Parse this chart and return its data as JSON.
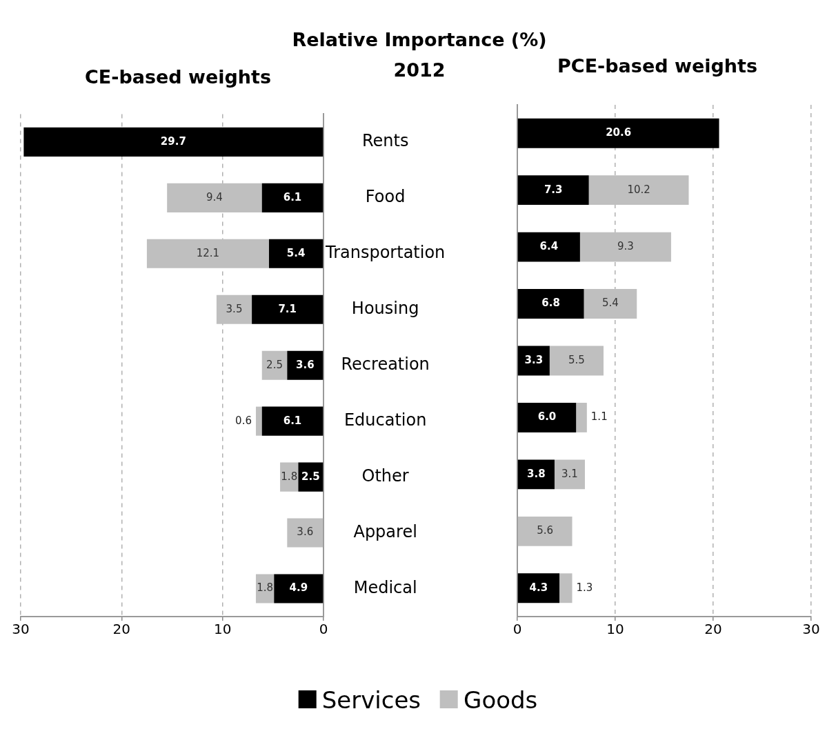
{
  "chart_data": [
    {
      "type": "bar",
      "orientation": "horizontal",
      "stacked": true,
      "title": "CE-based weights",
      "annotations": [
        "Relative Importance (%)",
        "2012"
      ],
      "categories": [
        "Rents",
        "Food",
        "Transportation",
        "Housing",
        "Recreation",
        "Education",
        "Other",
        "Apparel",
        "Medical"
      ],
      "series": [
        {
          "name": "Services",
          "color": "#000000",
          "values": [
            29.7,
            6.1,
            5.4,
            7.1,
            3.6,
            6.1,
            2.5,
            null,
            4.9
          ],
          "value_labels": [
            "29.7",
            "6.1",
            "5.4",
            "7.1",
            "3.6",
            "6.1",
            "2.5",
            null,
            "4.9"
          ]
        },
        {
          "name": "Goods",
          "color": "#bfbfbf",
          "values": [
            null,
            9.4,
            12.1,
            3.5,
            2.5,
            0.6,
            1.8,
            3.6,
            1.8
          ],
          "value_labels": [
            null,
            "9.4",
            "12.1",
            "3.5",
            "2.5",
            "0.6",
            "1.8",
            "3.6",
            "1.8"
          ]
        }
      ],
      "xlim": [
        30,
        0
      ],
      "xticks": [
        30,
        20,
        10,
        0
      ],
      "grid": "x",
      "legend": "bottom"
    },
    {
      "type": "bar",
      "orientation": "horizontal",
      "stacked": true,
      "title": "PCE-based weights",
      "categories": [
        null,
        null,
        null,
        null,
        null,
        null,
        null,
        null,
        null
      ],
      "series": [
        {
          "color": "#000000",
          "values": [
            20.6,
            7.3,
            6.4,
            6.8,
            3.3,
            6.0,
            3.8,
            null,
            4.3
          ],
          "value_labels": [
            "20.6",
            "7.3",
            "6.4",
            "6.8",
            "3.3",
            "6.0",
            "3.8",
            null,
            "4.3"
          ]
        },
        {
          "color": "#bfbfbf",
          "values": [
            null,
            10.2,
            9.3,
            5.4,
            5.5,
            1.1,
            3.1,
            5.6,
            1.3
          ],
          "value_labels": [
            null,
            "10.2",
            "9.3",
            "5.4",
            "5.5",
            "1.1",
            "3.1",
            "5.6",
            "1.3"
          ]
        }
      ],
      "xlim": [
        0,
        30
      ],
      "xticks": [
        0,
        10,
        20,
        30
      ],
      "grid": "x",
      "tick_labels": "x"
    }
  ]
}
